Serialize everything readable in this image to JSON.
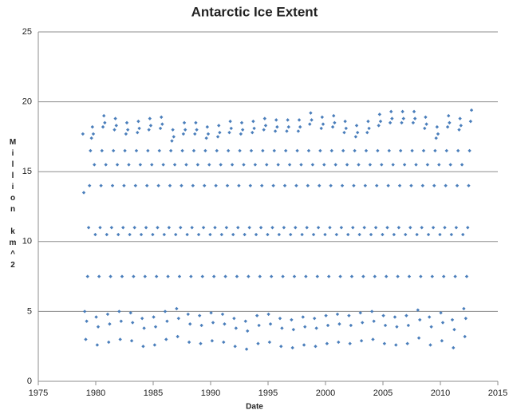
{
  "chart_data": {
    "type": "scatter",
    "title": "Antarctic Ice Extent",
    "x_label": "Date",
    "y_label": "Million km^2",
    "color": "#4a7ebb",
    "grid": true,
    "xlim": [
      1975,
      2015
    ],
    "xticks": [
      1975,
      1980,
      1985,
      1990,
      1995,
      2000,
      2005,
      2010,
      2015
    ],
    "ylim": [
      0,
      25
    ],
    "yticks": [
      0,
      5,
      10,
      15,
      20,
      25
    ],
    "x": [
      1978.88,
      1978.96,
      1979.04,
      1979.13,
      1979.21,
      1979.29,
      1979.38,
      1979.46,
      1979.54,
      1979.63,
      1979.71,
      1979.79,
      1979.88,
      1979.96,
      1980.04,
      1980.13,
      1980.21,
      1980.29,
      1980.38,
      1980.46,
      1980.54,
      1980.63,
      1980.71,
      1980.79,
      1980.88,
      1980.96,
      1981.04,
      1981.13,
      1981.21,
      1981.29,
      1981.38,
      1981.46,
      1981.54,
      1981.63,
      1981.71,
      1981.79,
      1981.88,
      1981.96,
      1982.04,
      1982.13,
      1982.21,
      1982.29,
      1982.38,
      1982.46,
      1982.54,
      1982.63,
      1982.71,
      1982.79,
      1982.88,
      1982.96,
      1983.04,
      1983.13,
      1983.21,
      1983.29,
      1983.38,
      1983.46,
      1983.54,
      1983.63,
      1983.71,
      1983.79,
      1983.88,
      1983.96,
      1984.04,
      1984.13,
      1984.21,
      1984.29,
      1984.38,
      1984.46,
      1984.54,
      1984.63,
      1984.71,
      1984.79,
      1984.88,
      1984.96,
      1985.04,
      1985.13,
      1985.21,
      1985.29,
      1985.38,
      1985.46,
      1985.54,
      1985.63,
      1985.71,
      1985.79,
      1985.88,
      1985.96,
      1986.04,
      1986.13,
      1986.21,
      1986.29,
      1986.38,
      1986.46,
      1986.54,
      1986.63,
      1986.71,
      1986.79,
      1986.88,
      1986.96,
      1987.04,
      1987.13,
      1987.21,
      1987.29,
      1987.38,
      1987.46,
      1987.54,
      1987.63,
      1987.71,
      1987.79,
      1987.88,
      1987.96,
      1988.04,
      1988.13,
      1988.21,
      1988.29,
      1988.38,
      1988.46,
      1988.54,
      1988.63,
      1988.71,
      1988.79,
      1988.88,
      1988.96,
      1989.04,
      1989.13,
      1989.21,
      1989.29,
      1989.38,
      1989.46,
      1989.54,
      1989.63,
      1989.71,
      1989.79,
      1989.88,
      1989.96,
      1990.04,
      1990.13,
      1990.21,
      1990.29,
      1990.38,
      1990.46,
      1990.54,
      1990.63,
      1990.71,
      1990.79,
      1990.88,
      1990.96,
      1991.04,
      1991.13,
      1991.21,
      1991.29,
      1991.38,
      1991.46,
      1991.54,
      1991.63,
      1991.71,
      1991.79,
      1991.88,
      1991.96,
      1992.04,
      1992.13,
      1992.21,
      1992.29,
      1992.38,
      1992.46,
      1992.54,
      1992.63,
      1992.71,
      1992.79,
      1992.88,
      1992.96,
      1993.04,
      1993.13,
      1993.21,
      1993.29,
      1993.38,
      1993.46,
      1993.54,
      1993.63,
      1993.71,
      1993.79,
      1993.88,
      1993.96,
      1994.04,
      1994.13,
      1994.21,
      1994.29,
      1994.38,
      1994.46,
      1994.54,
      1994.63,
      1994.71,
      1994.79,
      1994.88,
      1994.96,
      1995.04,
      1995.13,
      1995.21,
      1995.29,
      1995.38,
      1995.46,
      1995.54,
      1995.63,
      1995.71,
      1995.79,
      1995.88,
      1995.96,
      1996.04,
      1996.13,
      1996.21,
      1996.29,
      1996.38,
      1996.46,
      1996.54,
      1996.63,
      1996.71,
      1996.79,
      1996.88,
      1996.96,
      1997.04,
      1997.13,
      1997.21,
      1997.29,
      1997.38,
      1997.46,
      1997.54,
      1997.63,
      1997.71,
      1997.79,
      1997.88,
      1997.96,
      1998.04,
      1998.13,
      1998.21,
      1998.29,
      1998.38,
      1998.46,
      1998.54,
      1998.63,
      1998.71,
      1998.79,
      1998.88,
      1998.96,
      1999.04,
      1999.13,
      1999.21,
      1999.29,
      1999.38,
      1999.46,
      1999.54,
      1999.63,
      1999.71,
      1999.79,
      1999.88,
      1999.96,
      2000.04,
      2000.13,
      2000.21,
      2000.29,
      2000.38,
      2000.46,
      2000.54,
      2000.63,
      2000.71,
      2000.79,
      2000.88,
      2000.96,
      2001.04,
      2001.13,
      2001.21,
      2001.29,
      2001.38,
      2001.46,
      2001.54,
      2001.63,
      2001.71,
      2001.79,
      2001.88,
      2001.96,
      2002.04,
      2002.13,
      2002.21,
      2002.29,
      2002.38,
      2002.46,
      2002.54,
      2002.63,
      2002.71,
      2002.79,
      2002.88,
      2002.96,
      2003.04,
      2003.13,
      2003.21,
      2003.29,
      2003.38,
      2003.46,
      2003.54,
      2003.63,
      2003.71,
      2003.79,
      2003.88,
      2003.96,
      2004.04,
      2004.13,
      2004.21,
      2004.29,
      2004.38,
      2004.46,
      2004.54,
      2004.63,
      2004.71,
      2004.79,
      2004.88,
      2004.96,
      2005.04,
      2005.13,
      2005.21,
      2005.29,
      2005.38,
      2005.46,
      2005.54,
      2005.63,
      2005.71,
      2005.79,
      2005.88,
      2005.96,
      2006.04,
      2006.13,
      2006.21,
      2006.29,
      2006.38,
      2006.46,
      2006.54,
      2006.63,
      2006.71,
      2006.79,
      2006.88,
      2006.96,
      2007.04,
      2007.13,
      2007.21,
      2007.29,
      2007.38,
      2007.46,
      2007.54,
      2007.63,
      2007.71,
      2007.79,
      2007.88,
      2007.96,
      2008.04,
      2008.13,
      2008.21,
      2008.29,
      2008.38,
      2008.46,
      2008.54,
      2008.63,
      2008.71,
      2008.79,
      2008.88,
      2008.96,
      2009.04,
      2009.13,
      2009.21,
      2009.29,
      2009.38,
      2009.46,
      2009.54,
      2009.63,
      2009.71,
      2009.79,
      2009.88,
      2009.96,
      2010.04,
      2010.13,
      2010.21,
      2010.29,
      2010.38,
      2010.46,
      2010.54,
      2010.63,
      2010.71,
      2010.79,
      2010.88,
      2010.96,
      2011.04,
      2011.13,
      2011.21,
      2011.29,
      2011.38,
      2011.46,
      2011.54,
      2011.63,
      2011.71,
      2011.79,
      2011.88,
      2011.96,
      2012.04,
      2012.13,
      2012.21,
      2012.29,
      2012.38,
      2012.46,
      2012.54,
      2012.63,
      2012.71
    ],
    "values": [
      17.7,
      13.5,
      5.0,
      3.0,
      4.3,
      7.5,
      11,
      14,
      16.5,
      17.4,
      18.2,
      17.7,
      15.5,
      10.5,
      4.6,
      2.6,
      3.9,
      7.5,
      11,
      14,
      16.5,
      18.2,
      19.0,
      18.5,
      15.5,
      10.5,
      4.8,
      2.8,
      4.1,
      7.5,
      11,
      14,
      16.5,
      18.0,
      18.8,
      18.3,
      15.5,
      10.5,
      5.0,
      3.0,
      4.3,
      7.5,
      11,
      14,
      16.5,
      17.7,
      18.5,
      18.0,
      15.5,
      10.5,
      4.9,
      2.9,
      4.2,
      7.5,
      11,
      14,
      16.5,
      17.8,
      18.6,
      18.1,
      15.5,
      10.5,
      4.5,
      2.5,
      3.8,
      7.5,
      11,
      14,
      16.5,
      18.0,
      18.8,
      18.3,
      15.5,
      10.5,
      4.6,
      2.6,
      3.9,
      7.5,
      11,
      14,
      16.5,
      18.1,
      18.9,
      18.4,
      15.5,
      10.5,
      5.0,
      3.0,
      4.3,
      7.5,
      11,
      14,
      16.5,
      17.2,
      18.0,
      17.5,
      15.5,
      10.5,
      5.2,
      3.2,
      4.5,
      7.5,
      11,
      14,
      16.5,
      17.7,
      18.5,
      18.0,
      15.5,
      10.5,
      4.8,
      2.8,
      4.1,
      7.5,
      11,
      14,
      16.5,
      17.7,
      18.5,
      18.0,
      15.5,
      10.5,
      4.7,
      2.7,
      4.0,
      7.5,
      11,
      14,
      16.5,
      17.4,
      18.2,
      17.7,
      15.5,
      10.5,
      4.9,
      2.9,
      4.2,
      7.5,
      11,
      14,
      16.5,
      17.5,
      18.3,
      17.8,
      15.5,
      10.5,
      4.8,
      2.8,
      4.1,
      7.5,
      11,
      14,
      16.5,
      17.8,
      18.6,
      18.1,
      15.5,
      10.5,
      4.5,
      2.5,
      3.8,
      7.5,
      11,
      14,
      16.5,
      17.7,
      18.5,
      18.0,
      15.5,
      10.5,
      4.3,
      2.3,
      3.6,
      7.5,
      11,
      14,
      16.5,
      17.8,
      18.6,
      18.1,
      15.5,
      10.5,
      4.7,
      2.7,
      4.0,
      7.5,
      11,
      14,
      16.5,
      18.0,
      18.8,
      18.3,
      15.5,
      10.5,
      4.8,
      2.8,
      4.1,
      7.5,
      11,
      14,
      16.5,
      17.9,
      18.7,
      18.2,
      15.5,
      10.5,
      4.5,
      2.5,
      3.8,
      7.5,
      11,
      14,
      16.5,
      17.9,
      18.7,
      18.2,
      15.5,
      10.5,
      4.4,
      2.4,
      3.7,
      7.5,
      11,
      14,
      16.5,
      17.9,
      18.7,
      18.2,
      15.5,
      10.5,
      4.6,
      2.6,
      3.9,
      7.5,
      11,
      14,
      16.5,
      18.4,
      19.2,
      18.7,
      15.5,
      10.5,
      4.5,
      2.5,
      3.8,
      7.5,
      11,
      14,
      16.5,
      18.1,
      18.9,
      18.4,
      15.5,
      10.5,
      4.7,
      2.7,
      4.0,
      7.5,
      11,
      14,
      16.5,
      18.2,
      19.0,
      18.5,
      15.5,
      10.5,
      4.8,
      2.8,
      4.1,
      7.5,
      11,
      14,
      16.5,
      17.8,
      18.6,
      18.1,
      15.5,
      10.5,
      4.7,
      2.7,
      4.0,
      7.5,
      11,
      14,
      16.5,
      17.5,
      18.3,
      17.8,
      15.5,
      10.5,
      4.9,
      2.9,
      4.2,
      7.5,
      11,
      14,
      16.5,
      17.8,
      18.6,
      18.1,
      15.5,
      10.5,
      5.0,
      3.0,
      4.3,
      7.5,
      11,
      14,
      16.5,
      18.3,
      19.1,
      18.6,
      15.5,
      10.5,
      4.7,
      2.7,
      4.0,
      7.5,
      11,
      14,
      16.5,
      18.5,
      19.3,
      18.8,
      15.5,
      10.5,
      4.6,
      2.6,
      3.9,
      7.5,
      11,
      14,
      16.5,
      18.5,
      19.3,
      18.8,
      15.5,
      10.5,
      4.7,
      2.7,
      4.0,
      7.5,
      11,
      14,
      16.5,
      18.5,
      19.3,
      18.8,
      15.5,
      10.5,
      5.1,
      3.1,
      4.4,
      7.5,
      11,
      14,
      16.5,
      18.1,
      18.9,
      18.4,
      15.5,
      10.5,
      4.6,
      2.6,
      3.9,
      7.5,
      11,
      14,
      16.5,
      17.4,
      18.2,
      17.7,
      15.5,
      10.5,
      4.9,
      2.9,
      4.2,
      7.5,
      11,
      14,
      16.5,
      18.2,
      19.0,
      18.5,
      15.5,
      10.5,
      4.4,
      2.4,
      3.7,
      7.5,
      11,
      14,
      16.5,
      18.0,
      18.8,
      18.3,
      15.5,
      10.5,
      5.2,
      3.2,
      4.5,
      7.5,
      11,
      14,
      16.5,
      18.6,
      19.4
    ]
  }
}
